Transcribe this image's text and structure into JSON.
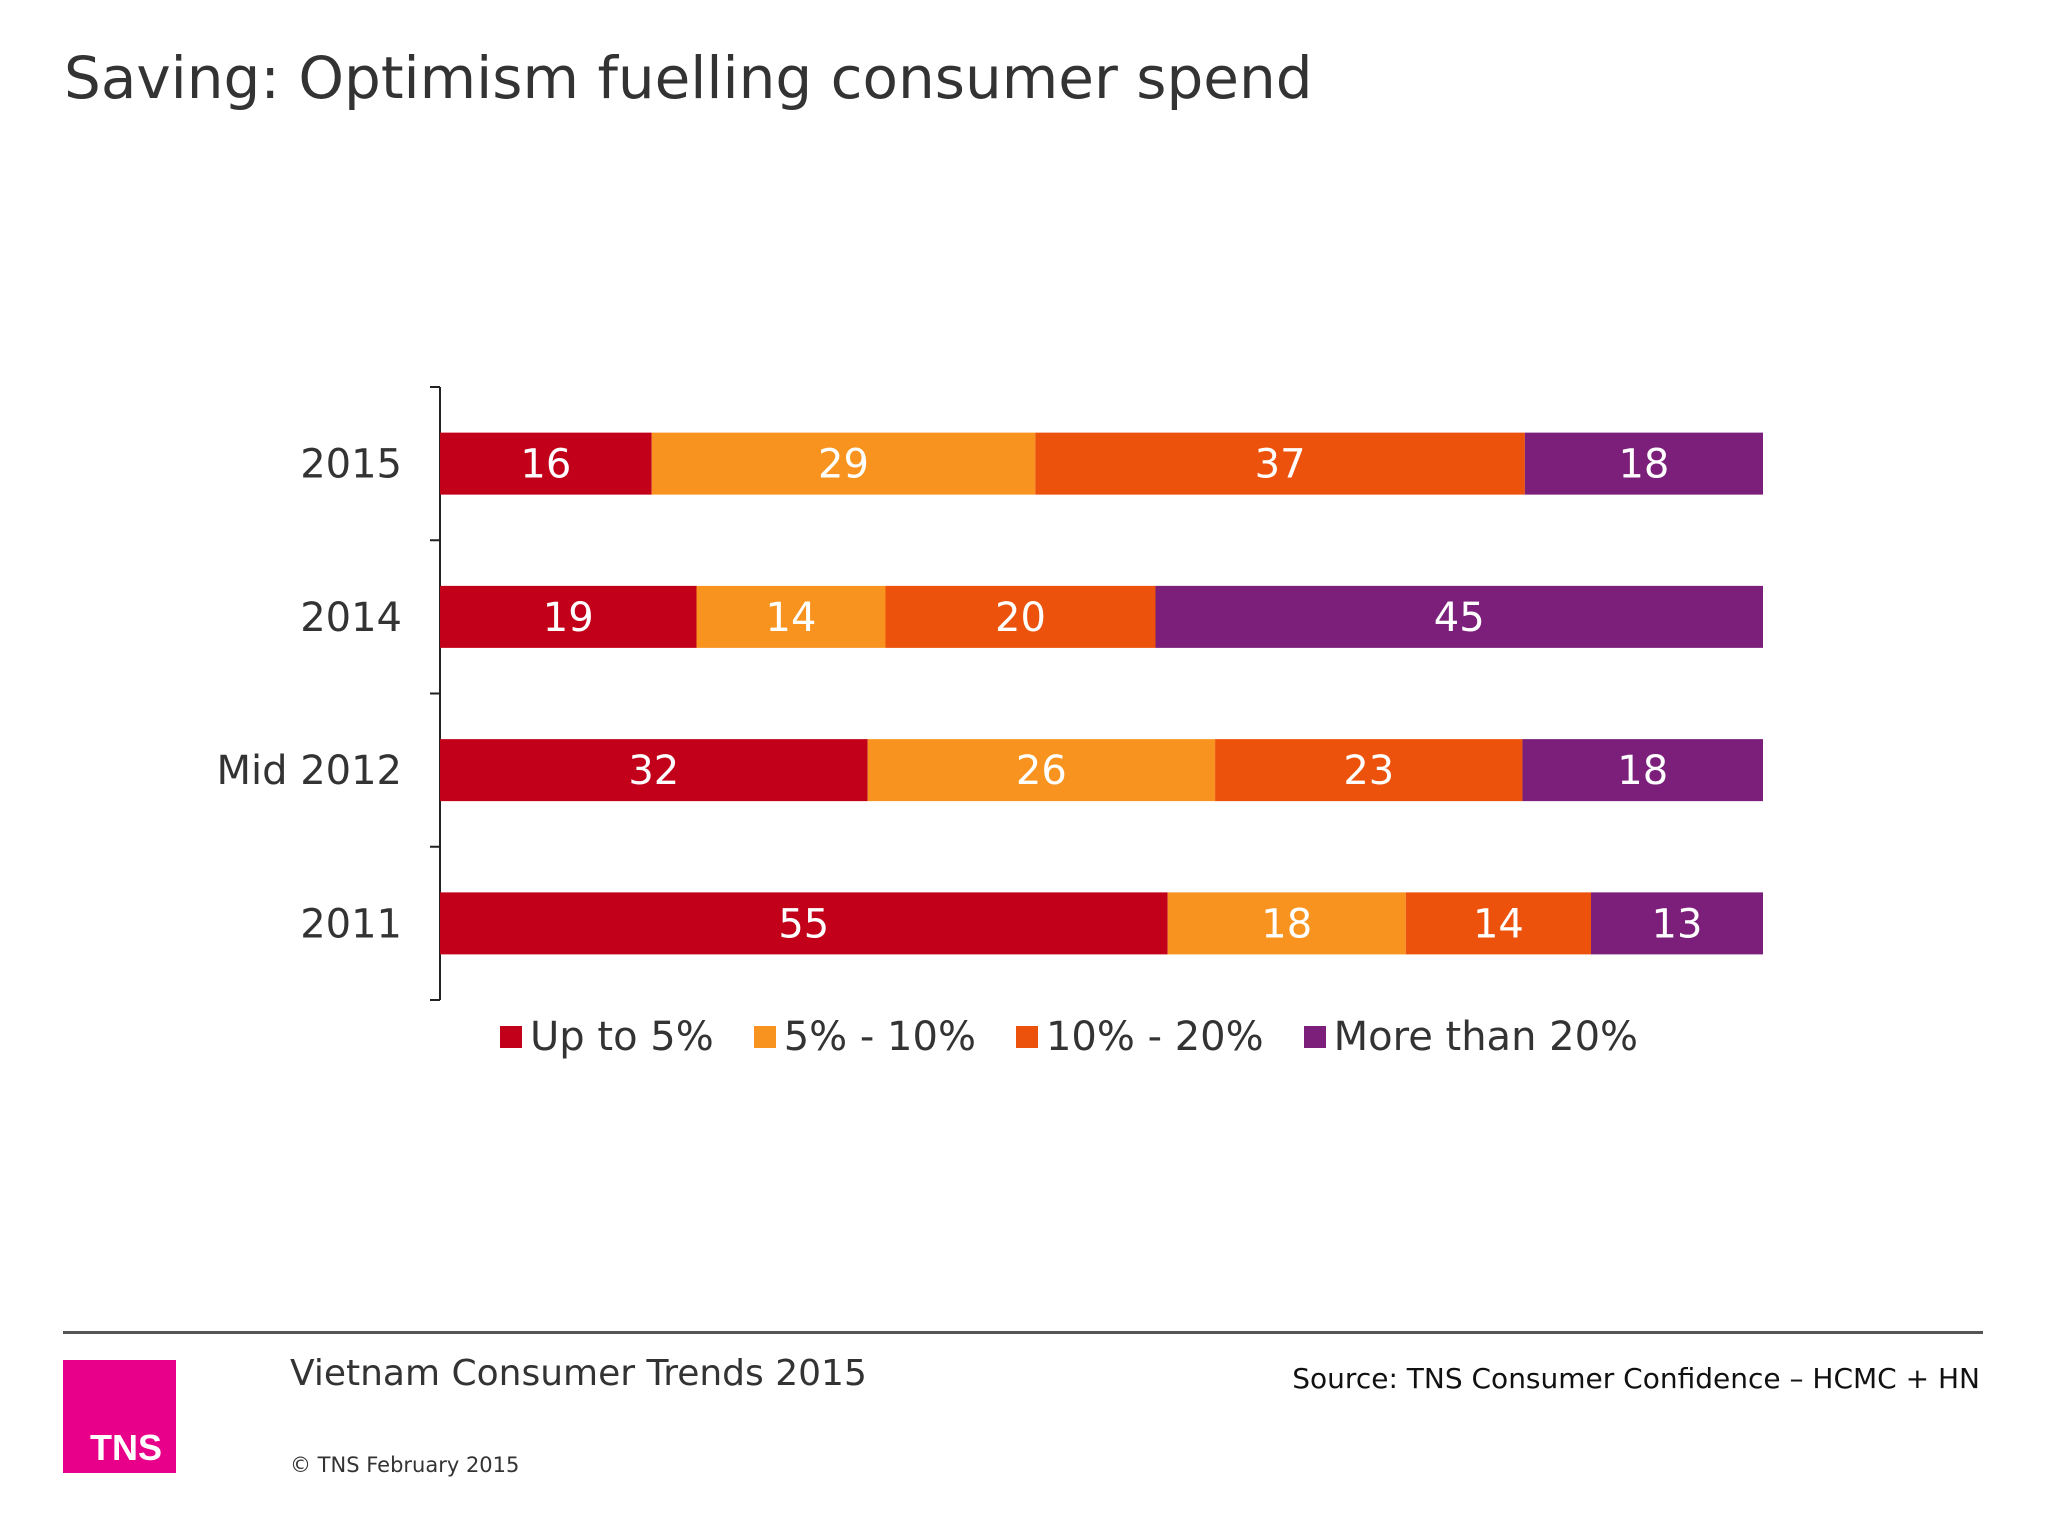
{
  "title": "Saving: Optimism fuelling consumer spend",
  "chart_data": {
    "type": "bar",
    "orientation": "horizontal",
    "stacked": true,
    "percent_stacked": true,
    "categories": [
      "2015",
      "2014",
      "Mid 2012",
      "2011"
    ],
    "series": [
      {
        "name": "Up to 5%",
        "color": "#c3001a",
        "values": [
          16,
          19,
          32,
          55
        ]
      },
      {
        "name": "5% - 10%",
        "color": "#f7931e",
        "values": [
          29,
          14,
          26,
          18
        ]
      },
      {
        "name": "10% - 20%",
        "color": "#ec520b",
        "values": [
          37,
          20,
          23,
          14
        ]
      },
      {
        "name": "More than 20%",
        "color": "#7b1f7b",
        "values": [
          18,
          45,
          18,
          13
        ]
      }
    ],
    "data_labels": true,
    "legend": "bottom",
    "grid": false
  },
  "footer": {
    "report": "Vietnam Consumer Trends 2015",
    "source": "Source: TNS  Consumer Confidence – HCMC + HN",
    "copyright": "© TNS February 2015",
    "logo_text": "TNS",
    "logo_color": "#e8008a"
  }
}
